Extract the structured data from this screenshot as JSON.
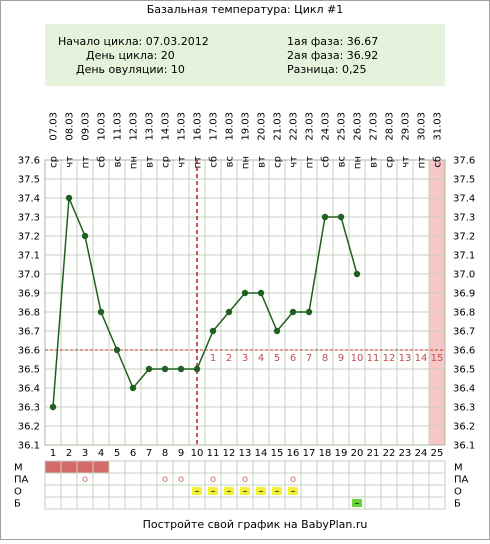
{
  "chart_data": {
    "type": "line",
    "title": "Базальная температура: Цикл #1",
    "info": [
      {
        "label": "Начало цикла:",
        "value": "07.03.2012"
      },
      {
        "label": "День цикла:",
        "value": "20"
      },
      {
        "label": "День овуляции:",
        "value": "10"
      },
      {
        "label": "1ая фаза:",
        "value": "36.67"
      },
      {
        "label": "2ая фаза:",
        "value": "36.92"
      },
      {
        "label": "Разница:",
        "value": "0,25"
      }
    ],
    "categories": [
      1,
      2,
      3,
      4,
      5,
      6,
      7,
      8,
      9,
      10,
      11,
      12,
      13,
      14,
      15,
      16,
      17,
      18,
      19,
      20,
      21,
      22,
      23,
      24,
      25
    ],
    "dates": [
      "07.03",
      "08.03",
      "09.03",
      "10.03",
      "11.03",
      "12.03",
      "13.03",
      "14.03",
      "15.03",
      "16.03",
      "17.03",
      "18.03",
      "19.03",
      "20.03",
      "21.03",
      "22.03",
      "23.03",
      "24.03",
      "25.03",
      "26.03",
      "27.03",
      "28.03",
      "29.03",
      "30.03",
      "31.03"
    ],
    "weekdays": [
      "ср",
      "чт",
      "пт",
      "сб",
      "вс",
      "пн",
      "вт",
      "ср",
      "чт",
      "пт",
      "сб",
      "вс",
      "пн",
      "вт",
      "ср",
      "чт",
      "пт",
      "сб",
      "вс",
      "пн",
      "вт",
      "ср",
      "чт",
      "пт",
      "сб"
    ],
    "series": [
      {
        "name": "Температура",
        "color": "#1f5f1f",
        "values": [
          36.3,
          37.4,
          37.2,
          36.8,
          36.6,
          36.4,
          36.5,
          36.5,
          36.5,
          36.5,
          36.7,
          36.8,
          36.9,
          36.9,
          36.7,
          36.8,
          36.8,
          37.3,
          37.3,
          37.0,
          null,
          null,
          null,
          null,
          null
        ]
      }
    ],
    "ylim": [
      36.1,
      37.6
    ],
    "yticks": [
      36.1,
      36.2,
      36.3,
      36.4,
      36.5,
      36.6,
      36.7,
      36.8,
      36.9,
      {
        "value": 37.0,
        "label": "37.0"
      },
      37.1,
      37.2,
      37.3,
      37.4,
      37.5,
      37.6
    ],
    "grid": true,
    "cover_line": 36.6,
    "ovulation_day": 10,
    "phase_days": [
      1,
      2,
      3,
      4,
      5,
      6,
      7,
      8,
      9,
      10,
      11,
      12,
      13,
      14,
      15
    ],
    "highlight_days": [
      25
    ],
    "rows": [
      {
        "label": "М",
        "days": [
          1,
          2,
          3,
          4
        ],
        "color": "#d46a6a"
      },
      {
        "label": "ПА",
        "days": [
          3,
          8,
          9,
          11,
          13,
          16
        ],
        "symbol": "o",
        "color": "#d46a6a"
      },
      {
        "label": "О",
        "days": [
          10,
          11,
          12,
          13,
          14,
          15,
          16
        ],
        "symbol": "–",
        "color": "#f2f23a"
      },
      {
        "label": "Б",
        "days": [
          20
        ],
        "symbol": "–",
        "color": "#6ad43a"
      }
    ],
    "footer": "Постройте свой график на BabyPlan.ru"
  }
}
